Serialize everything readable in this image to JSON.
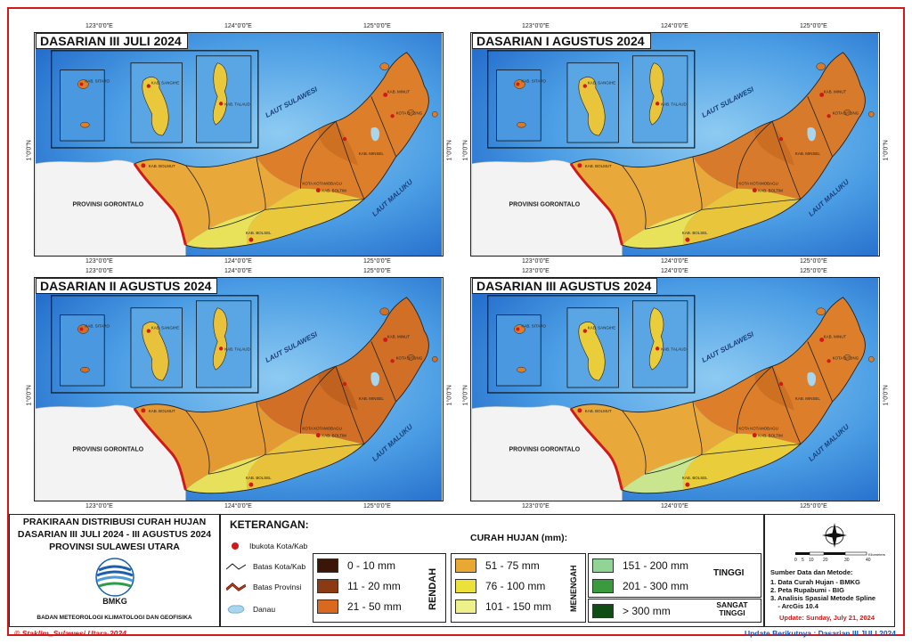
{
  "panels": [
    {
      "title": "DASARIAN III JULI 2024",
      "tone": [
        "#c8691f",
        "#dd7f2a",
        "#e8a83a",
        "#e9c93b",
        "#e7e25a"
      ]
    },
    {
      "title": "DASARIAN I AGUSTUS 2024",
      "tone": [
        "#c8691f",
        "#d77a2b",
        "#e8a83a",
        "#e9c53b",
        "#e7e25a"
      ]
    },
    {
      "title": "DASARIAN II AGUSTUS 2024",
      "tone": [
        "#b85b1c",
        "#d06f25",
        "#e39a33",
        "#e9c23b",
        "#e7e05a"
      ]
    },
    {
      "title": "DASARIAN III AGUSTUS 2024",
      "tone": [
        "#c8691f",
        "#dd7f2a",
        "#e8a83a",
        "#e9cd3b",
        "#c9e68f"
      ]
    }
  ],
  "coords": {
    "lon": [
      "123°0'0\"E",
      "124°0'0\"E",
      "125°0'0\"E"
    ],
    "lat": "1°0'0\"N"
  },
  "map_labels": {
    "laut_sulawesi": "LAUT SULAWESI",
    "laut_maluku": "LAUT MALUKU",
    "prov_gorontalo": "PROVINSI GORONTALO",
    "places": [
      "KAB. BOLMUT",
      "KAB. BOLSEL",
      "KAB. BOLTIM",
      "KOTA KOTAMOBAGU",
      "KAB. SANGIHE",
      "KAB. SITARO",
      "KAB. TALAUD",
      "KAB. MINSEL",
      "KAB. MINUT",
      "KOTA BITUNG"
    ]
  },
  "title_block": {
    "line1": "PRAKIRAAN DISTRIBUSI CURAH HUJAN",
    "line2": "DASARIAN III JULI 2024 - III AGUSTUS 2024",
    "line3": "PROVINSI SULAWESI UTARA",
    "logo_text": "BMKG",
    "org": "BADAN METEOROLOGI KLIMATOLOGI DAN GEOFISIKA"
  },
  "legend": {
    "heading": "KETERANGAN:",
    "symbols": [
      "Ibukota Kota/Kab",
      "Batas Kota/Kab",
      "Batas Provinsi",
      "Danau"
    ],
    "rain_heading": "CURAH HUJAN (mm):",
    "groups": [
      {
        "label": "RENDAH",
        "classes": [
          {
            "range": "0 - 10 mm",
            "color": "#3a1508"
          },
          {
            "range": "11 - 20 mm",
            "color": "#8b3a12"
          },
          {
            "range": "21 - 50 mm",
            "color": "#d9691e"
          }
        ]
      },
      {
        "label": "MENENGAH",
        "classes": [
          {
            "range": "51 - 75 mm",
            "color": "#e9a832"
          },
          {
            "range": "76 - 100 mm",
            "color": "#ece03a"
          },
          {
            "range": "101 - 150 mm",
            "color": "#eef08a"
          }
        ]
      },
      {
        "label": "TINGGI",
        "classes": [
          {
            "range": "151 - 200 mm",
            "color": "#92d396"
          },
          {
            "range": "201 - 300 mm",
            "color": "#3c9a3e"
          }
        ]
      },
      {
        "label": "SANGAT TINGGI",
        "classes": [
          {
            "range": "> 300 mm",
            "color": "#0f4d14"
          }
        ]
      }
    ]
  },
  "sources": {
    "scale": [
      "0",
      "5",
      "10",
      "20",
      "30",
      "40"
    ],
    "scale_unit": "Kilometers",
    "heading": "Sumber Data dan Metode:",
    "items": [
      "1. Data Curah Hujan - BMKG",
      "2. Peta Rupabumi - BIG",
      "3. Analisis Spasial Metode Spline",
      "    - ArcGis 10.4"
    ],
    "update": "Update: Sunday, July 21, 2024"
  },
  "footer": {
    "left": "© Staklim_Sulawesi Utara-2024",
    "right": "Update Berikutnya : Dasarian III JULI 2024"
  }
}
